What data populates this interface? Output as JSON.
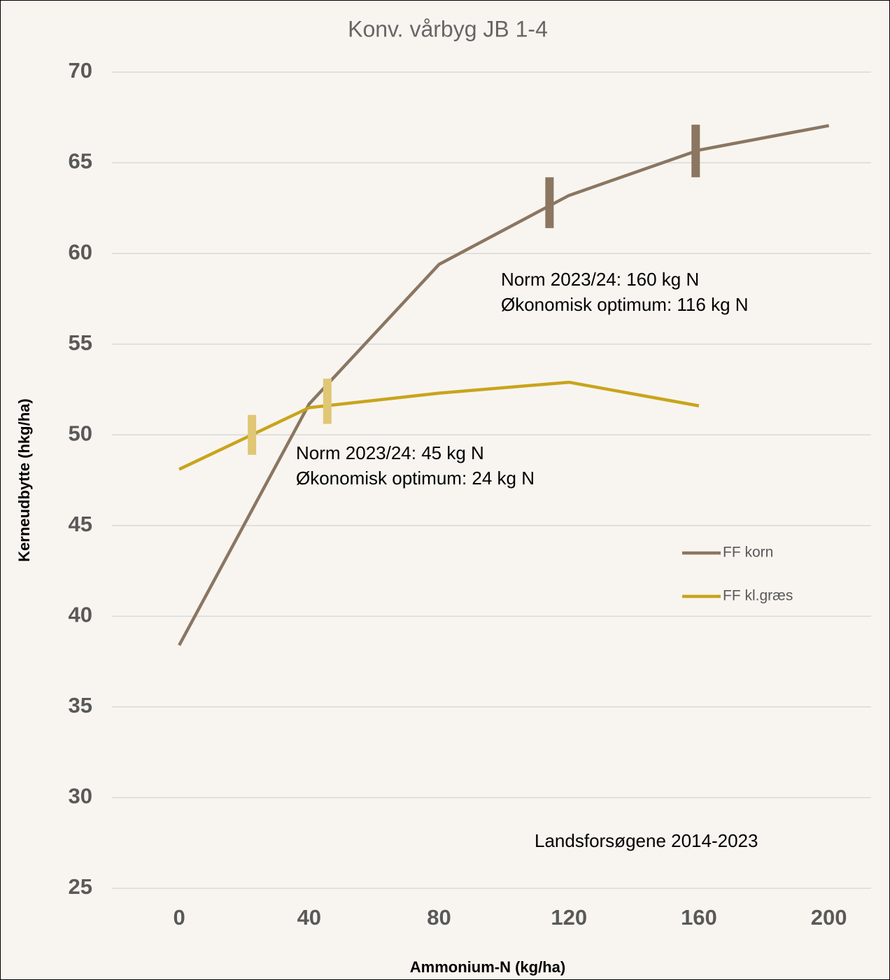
{
  "chart_data": {
    "type": "line",
    "title": "Konv. vårbyg JB 1-4",
    "xlabel": "Ammonium-N (kg/ha)",
    "ylabel": "Kerneudbytte (hkg/ha)",
    "xlim": [
      -20.7,
      213
    ],
    "xticks": [
      0,
      40,
      80,
      120,
      160,
      200
    ],
    "ylim": [
      25,
      70
    ],
    "yticks": [
      25,
      30,
      35,
      40,
      45,
      50,
      55,
      60,
      65,
      70
    ],
    "grid": true,
    "legend": "right",
    "series": [
      {
        "name": "FF korn",
        "color": "#8b7662",
        "x": [
          0,
          40,
          80,
          120,
          160,
          200
        ],
        "values": [
          38.4,
          51.7,
          59.4,
          63.2,
          65.7,
          67.05
        ]
      },
      {
        "name": "FF kl.græs",
        "color": "#c9a41c",
        "x": [
          0,
          40,
          80,
          120,
          160
        ],
        "values": [
          48.1,
          51.5,
          52.3,
          52.9,
          51.6
        ]
      }
    ],
    "markers": [
      {
        "x": 114,
        "y_low": 61.4,
        "y_high": 64.2,
        "color": "#8b7662"
      },
      {
        "x": 159,
        "y_low": 64.2,
        "y_high": 67.1,
        "color": "#8b7662"
      },
      {
        "x": 22.4,
        "y_low": 48.9,
        "y_high": 51.1,
        "color": "#e0c775"
      },
      {
        "x": 45.6,
        "y_low": 50.6,
        "y_high": 53.1,
        "color": "#e0c775"
      }
    ],
    "annotations": [
      [
        "Norm 2023/24: 160 kg N",
        "Økonomisk optimum: 116 kg N"
      ],
      [
        "Norm 2023/24: 45 kg N",
        "Økonomisk optimum: 24 kg N"
      ],
      [
        "Landsforsøgene 2014-2023"
      ]
    ]
  }
}
